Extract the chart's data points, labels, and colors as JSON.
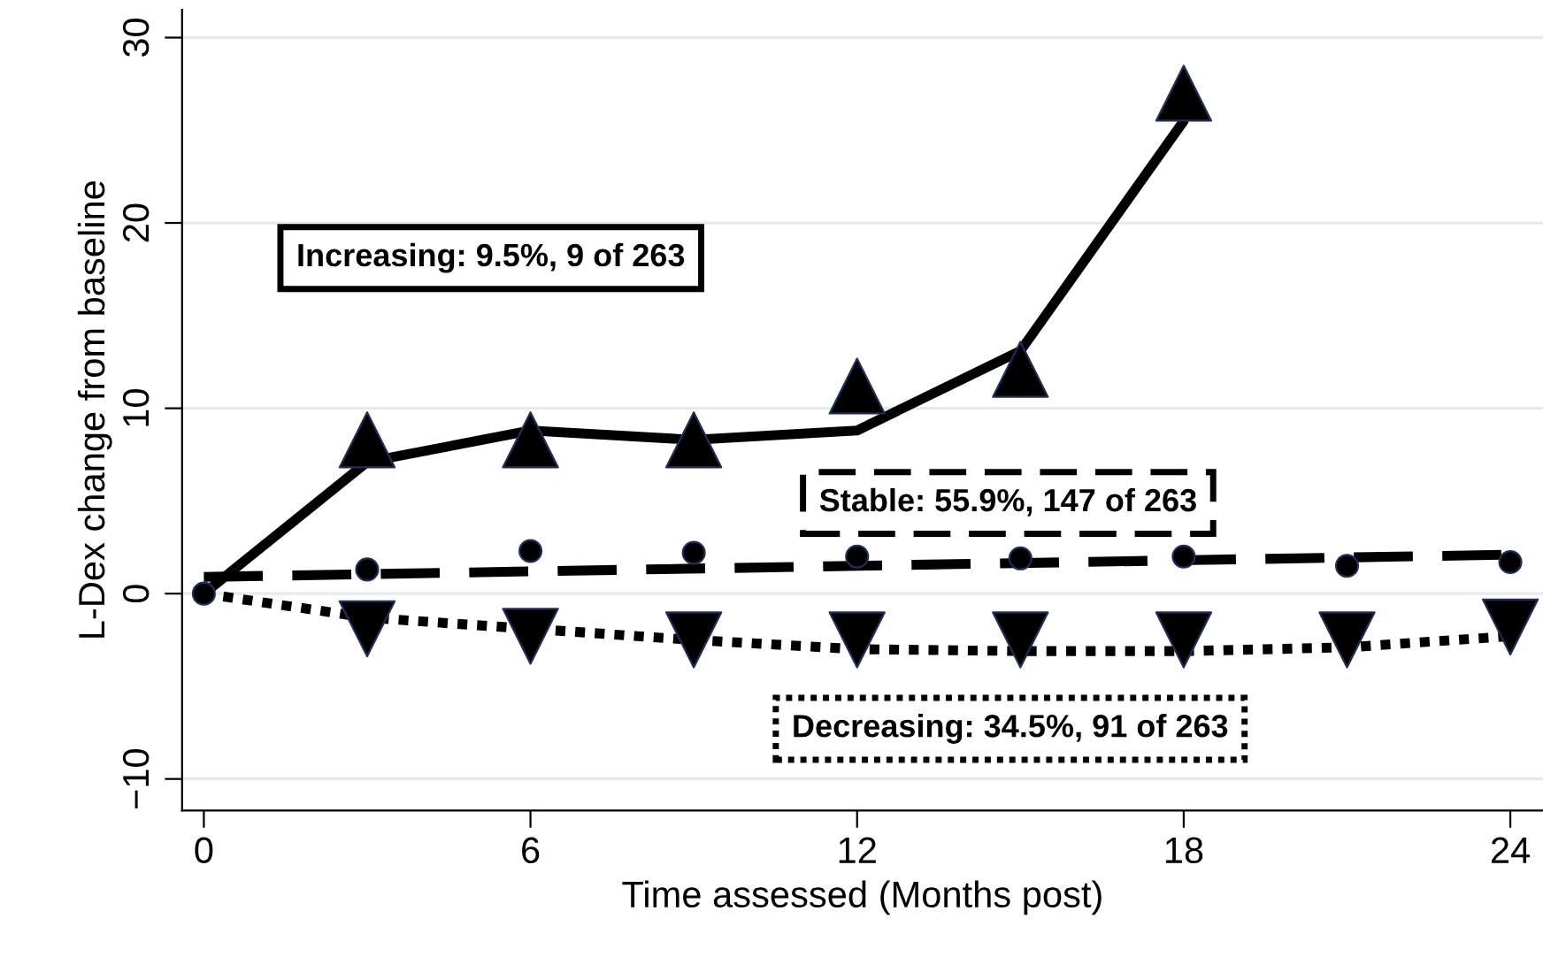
{
  "chart_data": {
    "type": "line",
    "xlabel": "Time assessed (Months post)",
    "ylabel": "L-Dex change from baseline",
    "series": [
      {
        "type": "scatter",
        "marker": "triangle",
        "color": "#000000",
        "x": [
          3,
          6,
          9,
          12,
          15,
          18
        ],
        "values": [
          8.3,
          8.3,
          8.3,
          11.2,
          12.1,
          27.0
        ]
      },
      {
        "marker": "none",
        "line_style": "solid",
        "color": "#000000",
        "x": [
          0,
          3,
          6,
          9,
          12,
          15,
          18
        ],
        "values": [
          0,
          7.1,
          8.8,
          8.3,
          8.8,
          13.1,
          25.5
        ]
      },
      {
        "type": "scatter",
        "marker": "circle",
        "color": "#000000",
        "x": [
          0,
          3,
          6,
          9,
          12,
          15,
          18,
          21,
          24
        ],
        "values": [
          0,
          1.3,
          2.3,
          2.2,
          2.0,
          1.9,
          2.0,
          1.5,
          1.7
        ]
      },
      {
        "marker": "none",
        "line_style": "dashed",
        "color": "#000000",
        "x": [
          0,
          24
        ],
        "values": [
          0.9,
          2.1
        ]
      },
      {
        "type": "scatter",
        "marker": "triangle_down",
        "color": "#000000",
        "x": [
          3,
          6,
          9,
          12,
          15,
          18,
          21,
          24
        ],
        "values": [
          -1.9,
          -2.3,
          -2.5,
          -2.5,
          -2.5,
          -2.5,
          -2.5,
          -1.8
        ]
      },
      {
        "marker": "none",
        "line_style": "dotted",
        "color": "#000000",
        "x": [
          0,
          3,
          6,
          9,
          12,
          15,
          18,
          21,
          24
        ],
        "values": [
          0,
          -1.3,
          -1.9,
          -2.5,
          -3.0,
          -3.1,
          -3.1,
          -2.9,
          -2.3
        ]
      }
    ],
    "annotations": [
      "Increasing: 9.5%, 9 of 263",
      "Stable: 55.9%, 147 of 263",
      "Decreasing: 34.5%, 91 of 263"
    ],
    "xlim": [
      -0.4,
      24.6
    ],
    "ylim": [
      -11.7,
      31.5
    ],
    "xticks": [
      0,
      6,
      12,
      18,
      24
    ],
    "yticks": [
      {
        "value": -10,
        "label": "−10"
      },
      0,
      10,
      20,
      30
    ],
    "grid": "y",
    "legend": false
  }
}
